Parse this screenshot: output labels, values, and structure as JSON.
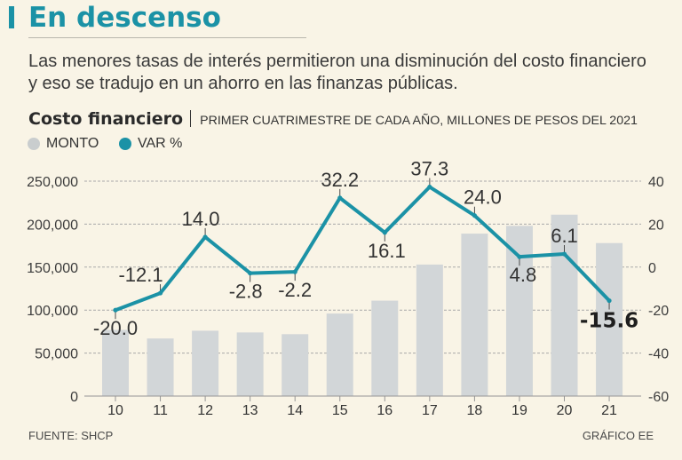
{
  "header": {
    "title": "En descenso",
    "subtitle_lines": [
      "Las menores tasas de interés permitieron una disminución del costo financiero",
      "y eso se tradujo en un ahorro en las finanzas públicas."
    ]
  },
  "colors": {
    "background": "#f9f4e6",
    "accent": "#1b92a6",
    "bar": "#d2d6d8",
    "text": "#333333",
    "grid": "#a9a9a9"
  },
  "chart_data": {
    "type": "bar",
    "title": "Costo financiero",
    "subtitle": "PRIMER CUATRIMESTRE DE CADA AÑO, MILLONES DE PESOS DEL 2021",
    "categories": [
      "10",
      "11",
      "12",
      "13",
      "14",
      "15",
      "16",
      "17",
      "18",
      "19",
      "20",
      "21"
    ],
    "series": [
      {
        "name": "MONTO",
        "type": "bar",
        "axis": "left",
        "values": [
          77000,
          67000,
          76000,
          74000,
          72000,
          96000,
          111000,
          153000,
          189000,
          198000,
          211000,
          178000
        ]
      },
      {
        "name": "VAR %",
        "type": "line",
        "axis": "right",
        "values": [
          -20.0,
          -12.1,
          14.0,
          -2.8,
          -2.2,
          32.2,
          16.1,
          37.3,
          24.0,
          4.8,
          6.1,
          -15.6
        ],
        "labels": [
          "-20.0",
          "-12.1",
          "14.0",
          "-2.8",
          "-2.2",
          "32.2",
          "16.1",
          "37.3",
          "24.0",
          "4.8",
          "6.1",
          "-15.6"
        ]
      }
    ],
    "y_left": {
      "range": [
        0,
        250000
      ],
      "ticks": [
        0,
        50000,
        100000,
        150000,
        200000,
        250000
      ],
      "tick_labels": [
        "0",
        "50,000",
        "100,000",
        "150,000",
        "200,000",
        "250,000"
      ]
    },
    "y_right": {
      "range": [
        -60,
        40
      ],
      "ticks": [
        -60,
        -40,
        -20,
        0,
        20,
        40
      ],
      "tick_labels": [
        "-60",
        "-40",
        "-20",
        "0",
        "20",
        "40"
      ]
    },
    "grid": true,
    "legend": "top-left"
  },
  "footer": {
    "source": "FUENTE: SHCP",
    "credit": "GRÁFICO EE"
  }
}
